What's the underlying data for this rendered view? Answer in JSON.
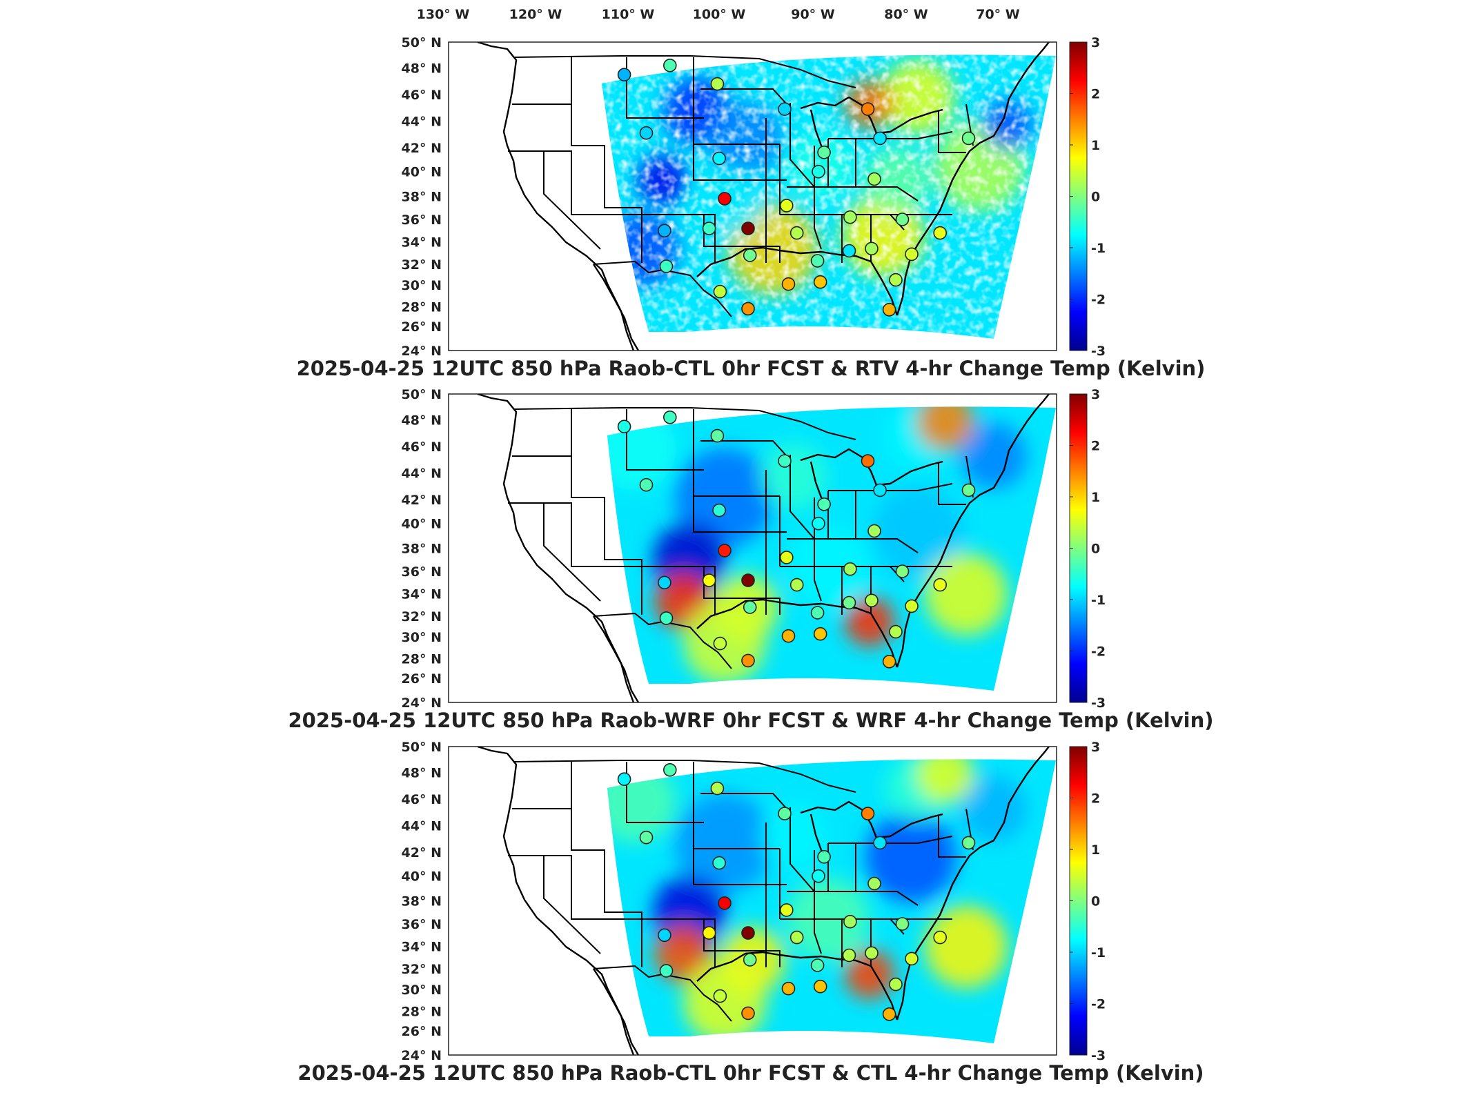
{
  "colormap": {
    "name": "jet",
    "stops": [
      "#00008f",
      "#0000ff",
      "#0080ff",
      "#00ffff",
      "#80ff80",
      "#ffff00",
      "#ff8000",
      "#ff0000",
      "#800000"
    ],
    "range": [
      -3,
      3
    ],
    "tick_values": [
      3,
      2,
      1,
      0,
      -1,
      -2,
      -3
    ],
    "tick_labels": [
      "3",
      "2",
      "1",
      "0",
      "-1",
      "-2",
      "-3"
    ]
  },
  "lon_labels": [
    "130° W",
    "120° W",
    "110° W",
    "100° W",
    "90° W",
    "80° W",
    "70° W"
  ],
  "lat_labels": [
    "50° N",
    "48° N",
    "46° N",
    "44° N",
    "42° N",
    "40° N",
    "38° N",
    "36° N",
    "34° N",
    "32° N",
    "30° N",
    "28° N",
    "26° N",
    "24° N"
  ],
  "chart_data": [
    {
      "type": "heatmap",
      "title": "2025-04-25 12UTC 850 hPa Raob-CTL 0hr FCST & RTV 4-hr Change Temp (Kelvin)",
      "field": "RTV 4-hr Change Temp",
      "units": "Kelvin",
      "colorbar_range": [
        -3,
        3
      ],
      "field_pattern": "retrieval swath with gaps, cool (blue) in northern plains and west, warm (yellow/orange) in Gulf coast and Great Lakes/northeast",
      "stations": [
        {
          "lon": -111.0,
          "lat": 47.5,
          "value": -1.2
        },
        {
          "lon": -106.0,
          "lat": 48.2,
          "value": -0.3
        },
        {
          "lon": -100.8,
          "lat": 46.8,
          "value": 0.3
        },
        {
          "lon": -108.6,
          "lat": 43.1,
          "value": -1.0
        },
        {
          "lon": -93.6,
          "lat": 44.9,
          "value": -1.0
        },
        {
          "lon": -84.7,
          "lat": 44.9,
          "value": 1.5
        },
        {
          "lon": -83.4,
          "lat": 42.7,
          "value": -0.9
        },
        {
          "lon": -73.8,
          "lat": 42.7,
          "value": -0.1
        },
        {
          "lon": -89.4,
          "lat": 41.6,
          "value": -0.2
        },
        {
          "lon": -100.6,
          "lat": 41.1,
          "value": -0.8
        },
        {
          "lon": -90.0,
          "lat": 40.0,
          "value": -0.6
        },
        {
          "lon": -84.0,
          "lat": 39.4,
          "value": 0.2
        },
        {
          "lon": -100.0,
          "lat": 37.8,
          "value": 2.3
        },
        {
          "lon": -93.4,
          "lat": 37.2,
          "value": 0.6
        },
        {
          "lon": -97.5,
          "lat": 35.2,
          "value": 3.2
        },
        {
          "lon": -106.6,
          "lat": 35.0,
          "value": -1.2
        },
        {
          "lon": -101.7,
          "lat": 35.2,
          "value": -0.4
        },
        {
          "lon": -92.3,
          "lat": 34.8,
          "value": 0.3
        },
        {
          "lon": -86.6,
          "lat": 36.2,
          "value": 0.2
        },
        {
          "lon": -81.0,
          "lat": 36.0,
          "value": -0.1
        },
        {
          "lon": -97.3,
          "lat": 32.8,
          "value": -0.1
        },
        {
          "lon": -90.1,
          "lat": 32.3,
          "value": -0.3
        },
        {
          "lon": -86.7,
          "lat": 33.2,
          "value": -0.9
        },
        {
          "lon": -84.3,
          "lat": 33.4,
          "value": 0.2
        },
        {
          "lon": -80.0,
          "lat": 32.9,
          "value": 0.5
        },
        {
          "lon": -76.9,
          "lat": 34.8,
          "value": 0.6
        },
        {
          "lon": -106.4,
          "lat": 31.8,
          "value": -0.4
        },
        {
          "lon": -100.5,
          "lat": 29.4,
          "value": 0.4
        },
        {
          "lon": -97.5,
          "lat": 27.8,
          "value": 1.4
        },
        {
          "lon": -93.2,
          "lat": 30.1,
          "value": 1.2
        },
        {
          "lon": -89.8,
          "lat": 30.3,
          "value": 1.1
        },
        {
          "lon": -82.4,
          "lat": 27.7,
          "value": 1.2
        },
        {
          "lon": -81.7,
          "lat": 30.5,
          "value": 0.3
        }
      ]
    },
    {
      "type": "heatmap",
      "title": "2025-04-25 12UTC 850 hPa Raob-WRF 0hr FCST & WRF 4-hr Change Temp (Kelvin)",
      "field": "WRF 4-hr Change Temp",
      "units": "Kelvin",
      "colorbar_range": [
        -3,
        3
      ],
      "field_pattern": "continuous model field, cool blue across much of the country, warm anomalies in west Texas/New Mexico, Gulf coast and northeast coast",
      "stations": [
        {
          "lon": -111.0,
          "lat": 47.5,
          "value": -0.6
        },
        {
          "lon": -106.0,
          "lat": 48.2,
          "value": -0.4
        },
        {
          "lon": -100.8,
          "lat": 46.8,
          "value": -0.2
        },
        {
          "lon": -108.6,
          "lat": 43.1,
          "value": -0.3
        },
        {
          "lon": -93.6,
          "lat": 44.9,
          "value": -0.4
        },
        {
          "lon": -84.7,
          "lat": 44.9,
          "value": 1.6
        },
        {
          "lon": -83.4,
          "lat": 42.7,
          "value": -0.9
        },
        {
          "lon": -73.8,
          "lat": 42.7,
          "value": -0.1
        },
        {
          "lon": -89.4,
          "lat": 41.6,
          "value": -0.3
        },
        {
          "lon": -100.6,
          "lat": 41.1,
          "value": -0.5
        },
        {
          "lon": -90.0,
          "lat": 40.0,
          "value": -0.7
        },
        {
          "lon": -84.0,
          "lat": 39.4,
          "value": 0.2
        },
        {
          "lon": -100.0,
          "lat": 37.8,
          "value": 2.1
        },
        {
          "lon": -93.4,
          "lat": 37.2,
          "value": 0.6
        },
        {
          "lon": -97.5,
          "lat": 35.2,
          "value": 3.0
        },
        {
          "lon": -106.6,
          "lat": 35.0,
          "value": -1.0
        },
        {
          "lon": -101.7,
          "lat": 35.2,
          "value": 0.7
        },
        {
          "lon": -92.3,
          "lat": 34.8,
          "value": 0.3
        },
        {
          "lon": -86.6,
          "lat": 36.2,
          "value": 0.2
        },
        {
          "lon": -81.0,
          "lat": 36.0,
          "value": 0.0
        },
        {
          "lon": -97.3,
          "lat": 32.8,
          "value": -0.2
        },
        {
          "lon": -90.1,
          "lat": 32.3,
          "value": -0.3
        },
        {
          "lon": -86.7,
          "lat": 33.2,
          "value": -0.1
        },
        {
          "lon": -84.3,
          "lat": 33.4,
          "value": 0.3
        },
        {
          "lon": -80.0,
          "lat": 32.9,
          "value": 0.5
        },
        {
          "lon": -76.9,
          "lat": 34.8,
          "value": 0.6
        },
        {
          "lon": -106.4,
          "lat": 31.8,
          "value": -0.4
        },
        {
          "lon": -100.5,
          "lat": 29.4,
          "value": 0.4
        },
        {
          "lon": -97.5,
          "lat": 27.8,
          "value": 1.4
        },
        {
          "lon": -93.2,
          "lat": 30.1,
          "value": 1.2
        },
        {
          "lon": -89.8,
          "lat": 30.3,
          "value": 1.1
        },
        {
          "lon": -82.4,
          "lat": 27.7,
          "value": 1.2
        },
        {
          "lon": -81.7,
          "lat": 30.5,
          "value": 0.3
        }
      ]
    },
    {
      "type": "heatmap",
      "title": "2025-04-25 12UTC 850 hPa Raob-CTL 0hr FCST & CTL 4-hr Change Temp (Kelvin)",
      "field": "CTL 4-hr Change Temp",
      "units": "Kelvin",
      "colorbar_range": [
        -3,
        3
      ],
      "field_pattern": "continuous model field similar to WRF, cool blue over central/northern US, warm anomalies in southwest and Gulf coast",
      "stations": [
        {
          "lon": -111.0,
          "lat": 47.5,
          "value": -0.8
        },
        {
          "lon": -106.0,
          "lat": 48.2,
          "value": -0.3
        },
        {
          "lon": -100.8,
          "lat": 46.8,
          "value": 0.3
        },
        {
          "lon": -108.6,
          "lat": 43.1,
          "value": -0.2
        },
        {
          "lon": -93.6,
          "lat": 44.9,
          "value": -0.2
        },
        {
          "lon": -84.7,
          "lat": 44.9,
          "value": 1.5
        },
        {
          "lon": -83.4,
          "lat": 42.7,
          "value": -0.9
        },
        {
          "lon": -73.8,
          "lat": 42.7,
          "value": -0.1
        },
        {
          "lon": -89.4,
          "lat": 41.6,
          "value": -0.3
        },
        {
          "lon": -100.6,
          "lat": 41.1,
          "value": -0.5
        },
        {
          "lon": -90.0,
          "lat": 40.0,
          "value": -0.7
        },
        {
          "lon": -84.0,
          "lat": 39.4,
          "value": 0.2
        },
        {
          "lon": -100.0,
          "lat": 37.8,
          "value": 2.3
        },
        {
          "lon": -93.4,
          "lat": 37.2,
          "value": 0.6
        },
        {
          "lon": -97.5,
          "lat": 35.2,
          "value": 3.2
        },
        {
          "lon": -106.6,
          "lat": 35.0,
          "value": -1.0
        },
        {
          "lon": -101.7,
          "lat": 35.2,
          "value": 0.8
        },
        {
          "lon": -92.3,
          "lat": 34.8,
          "value": 0.3
        },
        {
          "lon": -86.6,
          "lat": 36.2,
          "value": 0.2
        },
        {
          "lon": -81.0,
          "lat": 36.0,
          "value": 0.0
        },
        {
          "lon": -97.3,
          "lat": 32.8,
          "value": -0.1
        },
        {
          "lon": -90.1,
          "lat": 32.3,
          "value": -0.3
        },
        {
          "lon": -86.7,
          "lat": 33.2,
          "value": 0.3
        },
        {
          "lon": -84.3,
          "lat": 33.4,
          "value": 0.3
        },
        {
          "lon": -80.0,
          "lat": 32.9,
          "value": 0.5
        },
        {
          "lon": -76.9,
          "lat": 34.8,
          "value": 0.6
        },
        {
          "lon": -106.4,
          "lat": 31.8,
          "value": -0.4
        },
        {
          "lon": -100.5,
          "lat": 29.4,
          "value": 0.4
        },
        {
          "lon": -97.5,
          "lat": 27.8,
          "value": 1.4
        },
        {
          "lon": -93.2,
          "lat": 30.1,
          "value": 1.2
        },
        {
          "lon": -89.8,
          "lat": 30.3,
          "value": 1.1
        },
        {
          "lon": -82.4,
          "lat": 27.7,
          "value": 1.2
        },
        {
          "lon": -81.7,
          "lat": 30.5,
          "value": 0.3
        }
      ]
    }
  ]
}
